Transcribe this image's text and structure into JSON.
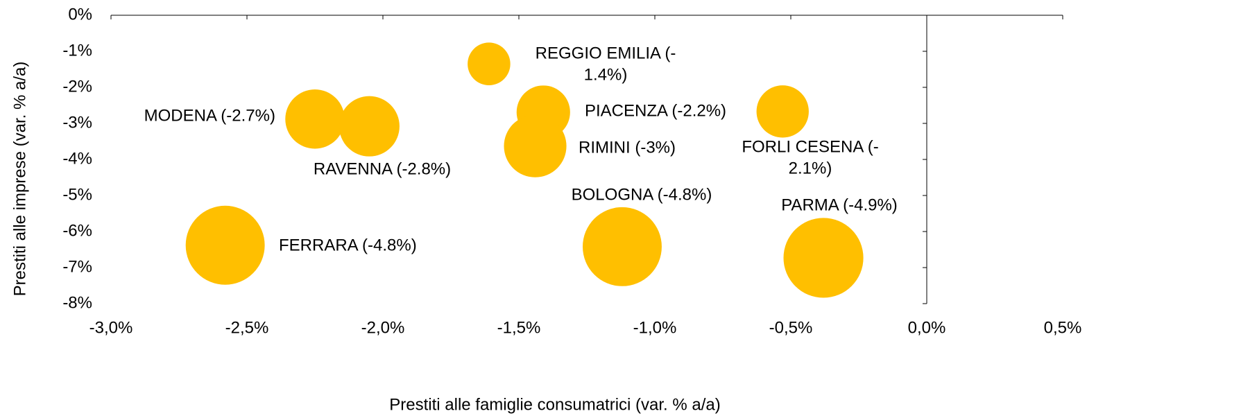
{
  "chart_data": {
    "type": "bubble",
    "x_label": "Prestiti alle famiglie consumatrici (var. % a/a)",
    "y_label": "Prestiti alle imprese (var. % a/a)",
    "color": "#ffbf00",
    "xlim": [
      -3.0,
      0.5
    ],
    "xticks": [
      {
        "value": -3.0,
        "label": "-3,0%"
      },
      {
        "value": -2.5,
        "label": "-2,5%"
      },
      {
        "value": -2.0,
        "label": "-2,0%"
      },
      {
        "value": -1.5,
        "label": "-1,5%"
      },
      {
        "value": -1.0,
        "label": "-1,0%"
      },
      {
        "value": -0.5,
        "label": "-0,5%"
      },
      {
        "value": 0.0,
        "label": "0,0%"
      },
      {
        "value": 0.5,
        "label": "0,5%"
      }
    ],
    "ylim": [
      -8,
      0
    ],
    "yticks": [
      {
        "value": 0,
        "label": "0%"
      },
      {
        "value": -1,
        "label": "-1%"
      },
      {
        "value": -2,
        "label": "-2%"
      },
      {
        "value": -3,
        "label": "-3%"
      },
      {
        "value": -4,
        "label": "-4%"
      },
      {
        "value": -5,
        "label": "-5%"
      },
      {
        "value": -6,
        "label": "-6%"
      },
      {
        "value": -7,
        "label": "-7%"
      },
      {
        "value": -8,
        "label": "-8%"
      }
    ],
    "points": [
      {
        "labels": [
          "REGGIO EMILIA (-",
          "1.4%)"
        ],
        "x": -1.61,
        "y": -1.35,
        "size": -1.4
      },
      {
        "labels": [
          "MODENA (-2.7%)"
        ],
        "x": -2.25,
        "y": -2.88,
        "size": -2.7
      },
      {
        "labels": [
          "RAVENNA (-2.8%)"
        ],
        "x": -2.05,
        "y": -3.08,
        "size": -2.8
      },
      {
        "labels": [
          "PIACENZA (-2.2%)"
        ],
        "x": -1.41,
        "y": -2.69,
        "size": -2.2
      },
      {
        "labels": [
          "RIMINI (-3%)"
        ],
        "x": -1.44,
        "y": -3.63,
        "size": -3
      },
      {
        "labels": [
          "FORLI CESENA (-",
          "2.1%)"
        ],
        "x": -0.53,
        "y": -2.67,
        "size": -2.1
      },
      {
        "labels": [
          "FERRARA (-4.8%)"
        ],
        "x": -2.58,
        "y": -6.38,
        "size": -4.8
      },
      {
        "labels": [
          "BOLOGNA (-4.8%)"
        ],
        "x": -1.12,
        "y": -6.42,
        "size": -4.8
      },
      {
        "labels": [
          "PARMA (-4.9%)"
        ],
        "x": -0.38,
        "y": -6.73,
        "size": -4.9
      }
    ]
  }
}
